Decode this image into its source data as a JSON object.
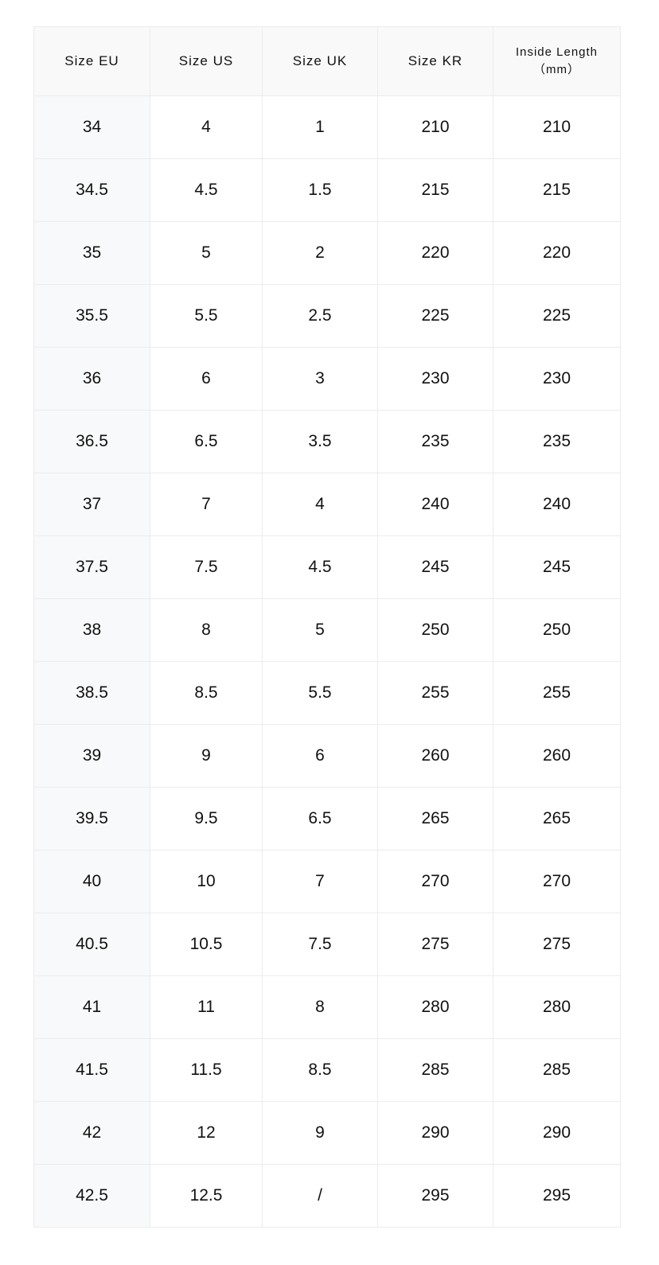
{
  "table": {
    "header": [
      "Size EU",
      "Size US",
      "Size UK",
      "Size KR",
      "Inside Length\n（mm）"
    ],
    "rows": [
      [
        "34",
        "4",
        "1",
        "210",
        "210"
      ],
      [
        "34.5",
        "4.5",
        "1.5",
        "215",
        "215"
      ],
      [
        "35",
        "5",
        "2",
        "220",
        "220"
      ],
      [
        "35.5",
        "5.5",
        "2.5",
        "225",
        "225"
      ],
      [
        "36",
        "6",
        "3",
        "230",
        "230"
      ],
      [
        "36.5",
        "6.5",
        "3.5",
        "235",
        "235"
      ],
      [
        "37",
        "7",
        "4",
        "240",
        "240"
      ],
      [
        "37.5",
        "7.5",
        "4.5",
        "245",
        "245"
      ],
      [
        "38",
        "8",
        "5",
        "250",
        "250"
      ],
      [
        "38.5",
        "8.5",
        "5.5",
        "255",
        "255"
      ],
      [
        "39",
        "9",
        "6",
        "260",
        "260"
      ],
      [
        "39.5",
        "9.5",
        "6.5",
        "265",
        "265"
      ],
      [
        "40",
        "10",
        "7",
        "270",
        "270"
      ],
      [
        "40.5",
        "10.5",
        "7.5",
        "275",
        "275"
      ],
      [
        "41",
        "11",
        "8",
        "280",
        "280"
      ],
      [
        "41.5",
        "11.5",
        "8.5",
        "285",
        "285"
      ],
      [
        "42",
        "12",
        "9",
        "290",
        "290"
      ],
      [
        "42.5",
        "12.5",
        "/",
        "295",
        "295"
      ]
    ]
  }
}
